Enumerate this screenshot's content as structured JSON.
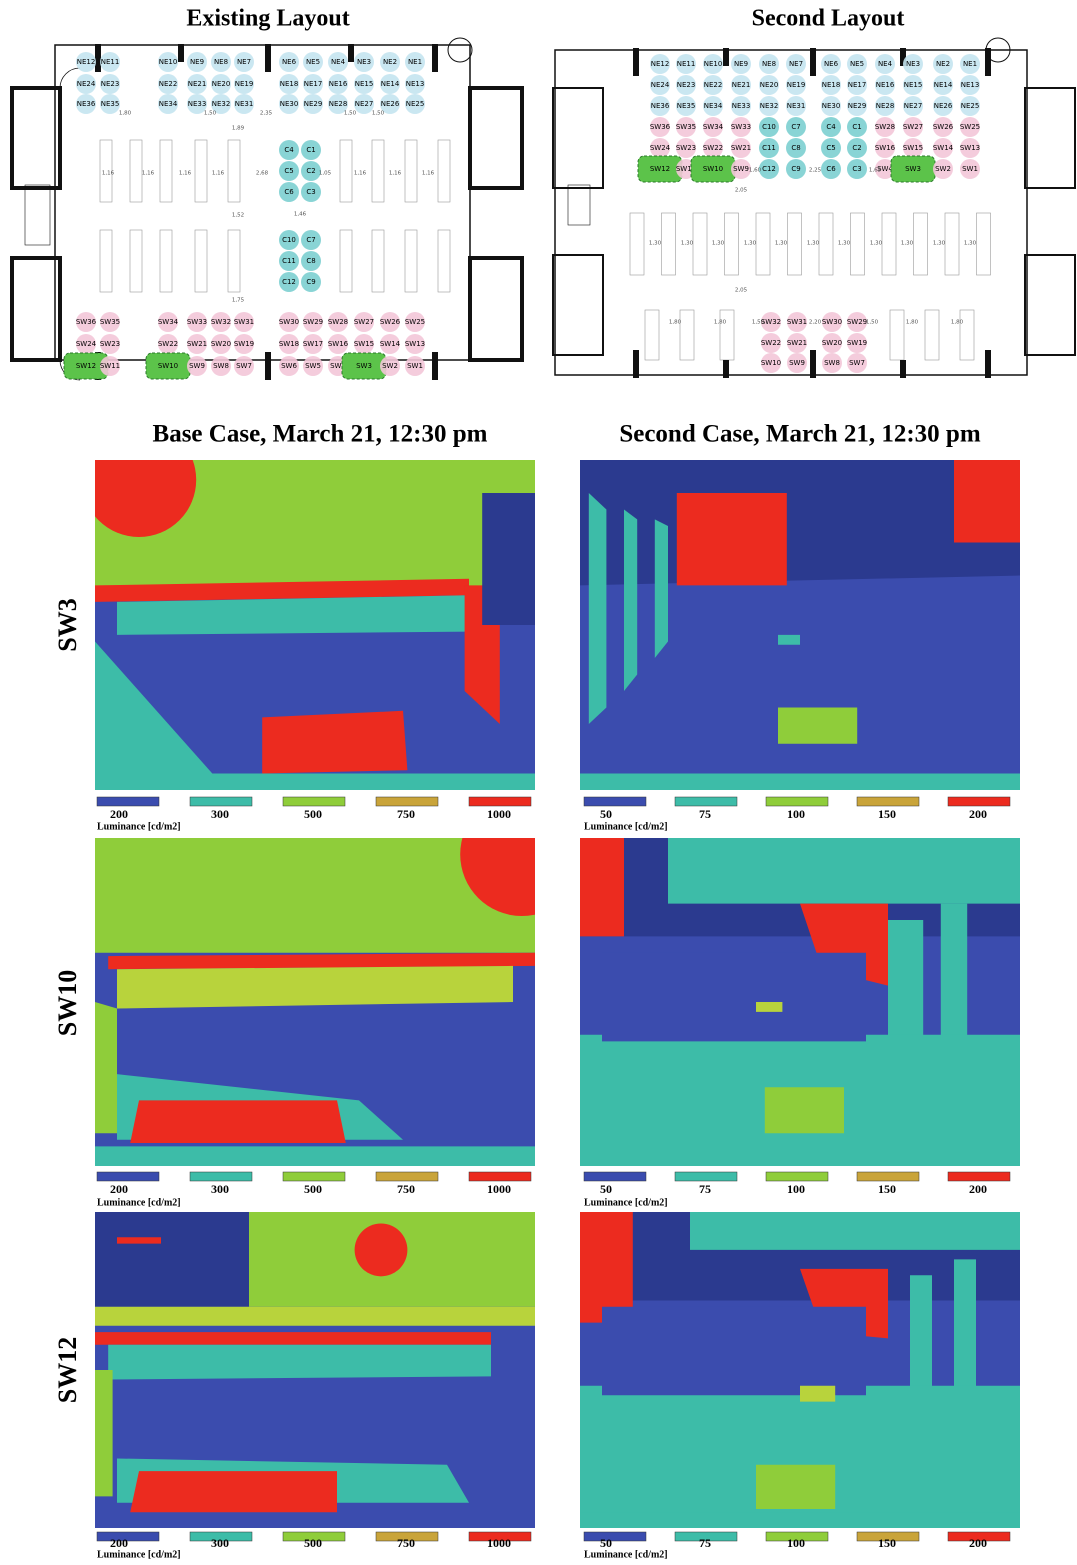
{
  "layouts": [
    {
      "title": "Existing Layout",
      "seat_groups": [
        [
          [
            "NE12",
            "NE11",
            "NE10",
            "NE9",
            "NE8",
            "NE7",
            "NE6",
            "NE5",
            "NE4",
            "NE3",
            "NE2",
            "NE1"
          ],
          [
            "NE24",
            "NE23",
            "NE22",
            "NE21",
            "NE20",
            "NE19",
            "NE18",
            "NE17",
            "NE16",
            "NE15",
            "NE14",
            "NE13"
          ],
          [
            "NE36",
            "NE35",
            "NE34",
            "NE33",
            "NE32",
            "NE31",
            "NE30",
            "NE29",
            "NE28",
            "NE27",
            "NE26",
            "NE25"
          ]
        ],
        [
          [
            "C4",
            "C1"
          ],
          [
            "C5",
            "C2"
          ],
          [
            "C6",
            "C3"
          ],
          [
            "C10",
            "C7"
          ],
          [
            "C11",
            "C8"
          ],
          [
            "C12",
            "C9"
          ]
        ],
        [
          [
            "SW36",
            "SW35",
            "SW34",
            "SW33",
            "SW32",
            "SW31",
            "SW30",
            "SW29",
            "SW28",
            "SW27",
            "SW26",
            "SW25"
          ],
          [
            "SW24",
            "SW23",
            "SW22",
            "SW21",
            "SW20",
            "SW19",
            "SW18",
            "SW17",
            "SW16",
            "SW15",
            "SW14",
            "SW13"
          ],
          [
            "SW12",
            "SW11",
            "SW10",
            "SW9",
            "SW8",
            "SW7",
            "SW6",
            "SW5",
            "SW4",
            "SW3",
            "SW2",
            "SW1"
          ]
        ]
      ],
      "dimensions": [
        "1,80",
        "1,50",
        "2,35",
        "1,50",
        "1,50",
        "1,89",
        "1,16",
        "1,16",
        "1,16",
        "1,16",
        "2,68",
        "1,05",
        "1,16",
        "1,16",
        "1,16",
        "1,52",
        "1,46",
        "1,75"
      ]
    },
    {
      "title": "Second Layout",
      "seat_groups": [
        [
          [
            "NE12",
            "NE11",
            "NE10",
            "NE9",
            "NE8",
            "NE7",
            "NE6",
            "NE5",
            "NE4",
            "NE3",
            "NE2",
            "NE1"
          ],
          [
            "NE24",
            "NE23",
            "NE22",
            "NE21",
            "NE20",
            "NE19",
            "NE18",
            "NE17",
            "NE16",
            "NE15",
            "NE14",
            "NE13"
          ],
          [
            "NE36",
            "NE35",
            "NE34",
            "NE33",
            "NE32",
            "NE31",
            "NE30",
            "NE29",
            "NE28",
            "NE27",
            "NE26",
            "NE25"
          ],
          [
            "SW36",
            "SW35",
            "SW34",
            "SW33",
            "C10",
            "C7",
            "C4",
            "C1",
            "SW28",
            "SW27",
            "SW26",
            "SW25"
          ],
          [
            "SW24",
            "SW23",
            "SW22",
            "SW21",
            "C11",
            "C8",
            "C5",
            "C2",
            "SW16",
            "SW15",
            "SW14",
            "SW13"
          ],
          [
            "SW12",
            "SW11",
            "SW10",
            "SW9",
            "C12",
            "C9",
            "C6",
            "C3",
            "SW4",
            "SW3",
            "SW2",
            "SW1"
          ]
        ],
        [
          [
            "SW32",
            "SW31",
            "SW30",
            "SW29"
          ],
          [
            "SW22",
            "SW21",
            "SW20",
            "SW19"
          ],
          [
            "SW10",
            "SW9",
            "SW8",
            "SW7"
          ]
        ]
      ],
      "dimensions": [
        "1,60",
        "2,25",
        "1,65",
        "2,05",
        "1,30",
        "1,30",
        "1,30",
        "1,30",
        "1,30",
        "1,30",
        "1,30",
        "1,30",
        "1,30",
        "1,30",
        "1,30",
        "2,05",
        "1,80",
        "1,80",
        "1,50",
        "2,20",
        "1,50",
        "1,80",
        "1,80"
      ]
    }
  ],
  "cases": [
    {
      "title": "Base Case, March 21, 12:30 pm",
      "legend": {
        "values": [
          200,
          300,
          500,
          750,
          1000
        ],
        "label": "Luminance [cd/m2]"
      }
    },
    {
      "title": "Second Case, March 21, 12:30 pm",
      "legend": {
        "values": [
          50,
          75,
          100,
          150,
          200
        ],
        "label": "Luminance [cd/m2]"
      }
    }
  ],
  "views": [
    "SW3",
    "SW10",
    "SW12"
  ]
}
